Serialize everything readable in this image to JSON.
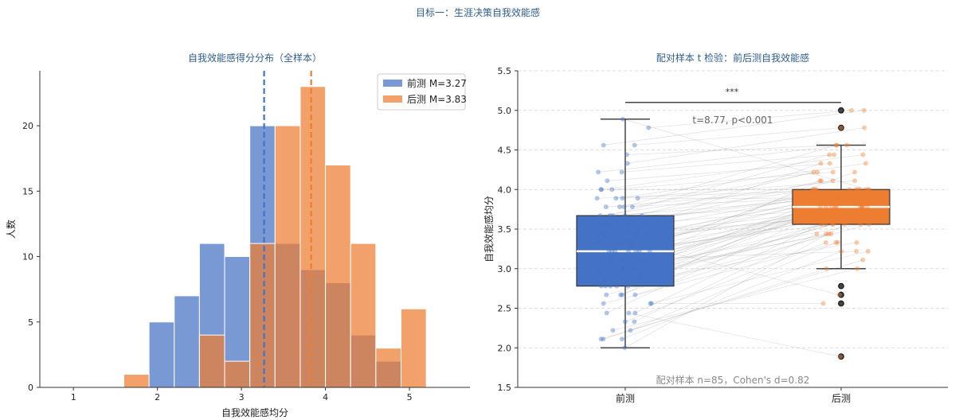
{
  "suptitle": "目标一：生涯决策自我效能感",
  "colors": {
    "pre": "#4472C4",
    "post": "#ED7D31",
    "title": "#2F5D8A",
    "axis": "#333333",
    "grid": "#DDDDDD",
    "bracket": "#444444",
    "annotation": "#666666",
    "note": "#888888"
  },
  "chart_data": [
    {
      "type": "histogram",
      "title": "自我效能感得分分布（全样本）",
      "xlabel": "自我效能感均分",
      "ylabel": "人数",
      "xlim": [
        0.6,
        5.72
      ],
      "ylim": [
        0,
        24.2
      ],
      "xticks": [
        1,
        2,
        3,
        4,
        5
      ],
      "yticks": [
        0,
        5,
        10,
        15,
        20
      ],
      "bin_width": 0.3,
      "series": [
        {
          "name": "前测 M=3.27",
          "mean": 3.27,
          "color": "#4472C4",
          "bins": [
            {
              "x0": 1.9,
              "count": 5
            },
            {
              "x0": 2.2,
              "count": 7
            },
            {
              "x0": 2.5,
              "count": 11
            },
            {
              "x0": 2.8,
              "count": 10
            },
            {
              "x0": 3.1,
              "count": 20
            },
            {
              "x0": 3.4,
              "count": 11
            },
            {
              "x0": 3.7,
              "count": 9
            },
            {
              "x0": 4.0,
              "count": 8
            },
            {
              "x0": 4.3,
              "count": 4
            },
            {
              "x0": 4.6,
              "count": 2
            }
          ]
        },
        {
          "name": "后测 M=3.83",
          "mean": 3.83,
          "color": "#ED7D31",
          "bins": [
            {
              "x0": 1.6,
              "count": 1
            },
            {
              "x0": 2.5,
              "count": 4
            },
            {
              "x0": 2.8,
              "count": 2
            },
            {
              "x0": 3.1,
              "count": 11
            },
            {
              "x0": 3.4,
              "count": 20
            },
            {
              "x0": 3.7,
              "count": 23
            },
            {
              "x0": 4.0,
              "count": 17
            },
            {
              "x0": 4.3,
              "count": 11
            },
            {
              "x0": 4.6,
              "count": 3
            },
            {
              "x0": 4.9,
              "count": 6
            }
          ]
        }
      ],
      "legend": "top-right"
    },
    {
      "type": "box",
      "title": "配对样本 t 检验：前后测自我效能感",
      "ylabel": "自我效能感均分",
      "ylim": [
        1.5,
        5.5
      ],
      "yticks": [
        "1.5",
        "2.0",
        "2.5",
        "3.0",
        "3.5",
        "4.0",
        "4.5",
        "5.0",
        "5.5"
      ],
      "categories": [
        "前测",
        "后测"
      ],
      "grid": "horizontal-dashed",
      "boxes": [
        {
          "name": "前测",
          "whisker_low": 2.0,
          "q1": 2.78,
          "median": 3.22,
          "q3": 3.67,
          "whisker_high": 4.89,
          "outliers": [],
          "color": "#4472C4"
        },
        {
          "name": "后测",
          "whisker_low": 3.0,
          "q1": 3.56,
          "median": 3.78,
          "q3": 4.0,
          "whisker_high": 4.56,
          "outliers": [
            1.89,
            2.56,
            2.67,
            2.78,
            5.0,
            4.78
          ],
          "color": "#ED7D31"
        }
      ],
      "significance": "***",
      "bracket_y": 5.1,
      "test_text": "t=8.77, p<0.001",
      "note": "配对样本 n=85，Cohen's d=0.82",
      "pairs": [
        [
          2.0,
          3.56
        ],
        [
          2.11,
          3.0
        ],
        [
          2.11,
          3.22
        ],
        [
          2.11,
          3.11
        ],
        [
          2.22,
          3.33
        ],
        [
          2.22,
          3.0
        ],
        [
          2.33,
          3.44
        ],
        [
          2.33,
          3.33
        ],
        [
          2.44,
          3.56
        ],
        [
          2.44,
          1.89
        ],
        [
          2.44,
          3.67
        ],
        [
          2.56,
          3.22
        ],
        [
          2.56,
          3.33
        ],
        [
          2.56,
          2.56
        ],
        [
          2.67,
          3.67
        ],
        [
          2.67,
          3.44
        ],
        [
          2.67,
          3.56
        ],
        [
          2.67,
          3.89
        ],
        [
          2.78,
          3.78
        ],
        [
          2.78,
          3.33
        ],
        [
          2.78,
          3.56
        ],
        [
          2.78,
          4.0
        ],
        [
          2.78,
          3.67
        ],
        [
          2.89,
          3.44
        ],
        [
          2.89,
          3.78
        ],
        [
          2.89,
          3.89
        ],
        [
          2.89,
          3.56
        ],
        [
          3.0,
          3.67
        ],
        [
          3.0,
          3.78
        ],
        [
          3.0,
          4.0
        ],
        [
          3.0,
          3.44
        ],
        [
          3.0,
          3.89
        ],
        [
          3.0,
          3.56
        ],
        [
          3.11,
          3.67
        ],
        [
          3.11,
          3.78
        ],
        [
          3.11,
          4.11
        ],
        [
          3.11,
          3.22
        ],
        [
          3.11,
          3.89
        ],
        [
          3.22,
          3.78
        ],
        [
          3.22,
          3.67
        ],
        [
          3.22,
          4.0
        ],
        [
          3.22,
          3.56
        ],
        [
          3.22,
          3.89
        ],
        [
          3.22,
          4.22
        ],
        [
          3.22,
          3.78
        ],
        [
          3.33,
          3.67
        ],
        [
          3.33,
          3.89
        ],
        [
          3.33,
          4.0
        ],
        [
          3.33,
          3.78
        ],
        [
          3.33,
          2.67
        ],
        [
          3.44,
          4.0
        ],
        [
          3.44,
          3.89
        ],
        [
          3.44,
          4.11
        ],
        [
          3.44,
          3.67
        ],
        [
          3.44,
          3.78
        ],
        [
          3.56,
          4.0
        ],
        [
          3.56,
          3.89
        ],
        [
          3.56,
          4.22
        ],
        [
          3.56,
          3.78
        ],
        [
          3.56,
          4.33
        ],
        [
          3.67,
          4.0
        ],
        [
          3.67,
          3.89
        ],
        [
          3.67,
          4.11
        ],
        [
          3.67,
          4.44
        ],
        [
          3.67,
          3.78
        ],
        [
          3.78,
          4.0
        ],
        [
          3.78,
          4.22
        ],
        [
          3.78,
          3.89
        ],
        [
          3.78,
          4.56
        ],
        [
          3.89,
          4.0
        ],
        [
          3.89,
          4.11
        ],
        [
          3.89,
          4.33
        ],
        [
          3.89,
          3.89
        ],
        [
          4.0,
          4.22
        ],
        [
          4.0,
          4.44
        ],
        [
          4.0,
          4.0
        ],
        [
          4.11,
          4.33
        ],
        [
          4.22,
          4.56
        ],
        [
          4.22,
          4.44
        ],
        [
          4.33,
          4.78
        ],
        [
          4.44,
          4.56
        ],
        [
          4.56,
          5.0
        ],
        [
          4.56,
          4.78
        ],
        [
          4.78,
          5.0
        ],
        [
          4.89,
          4.0
        ]
      ]
    }
  ]
}
